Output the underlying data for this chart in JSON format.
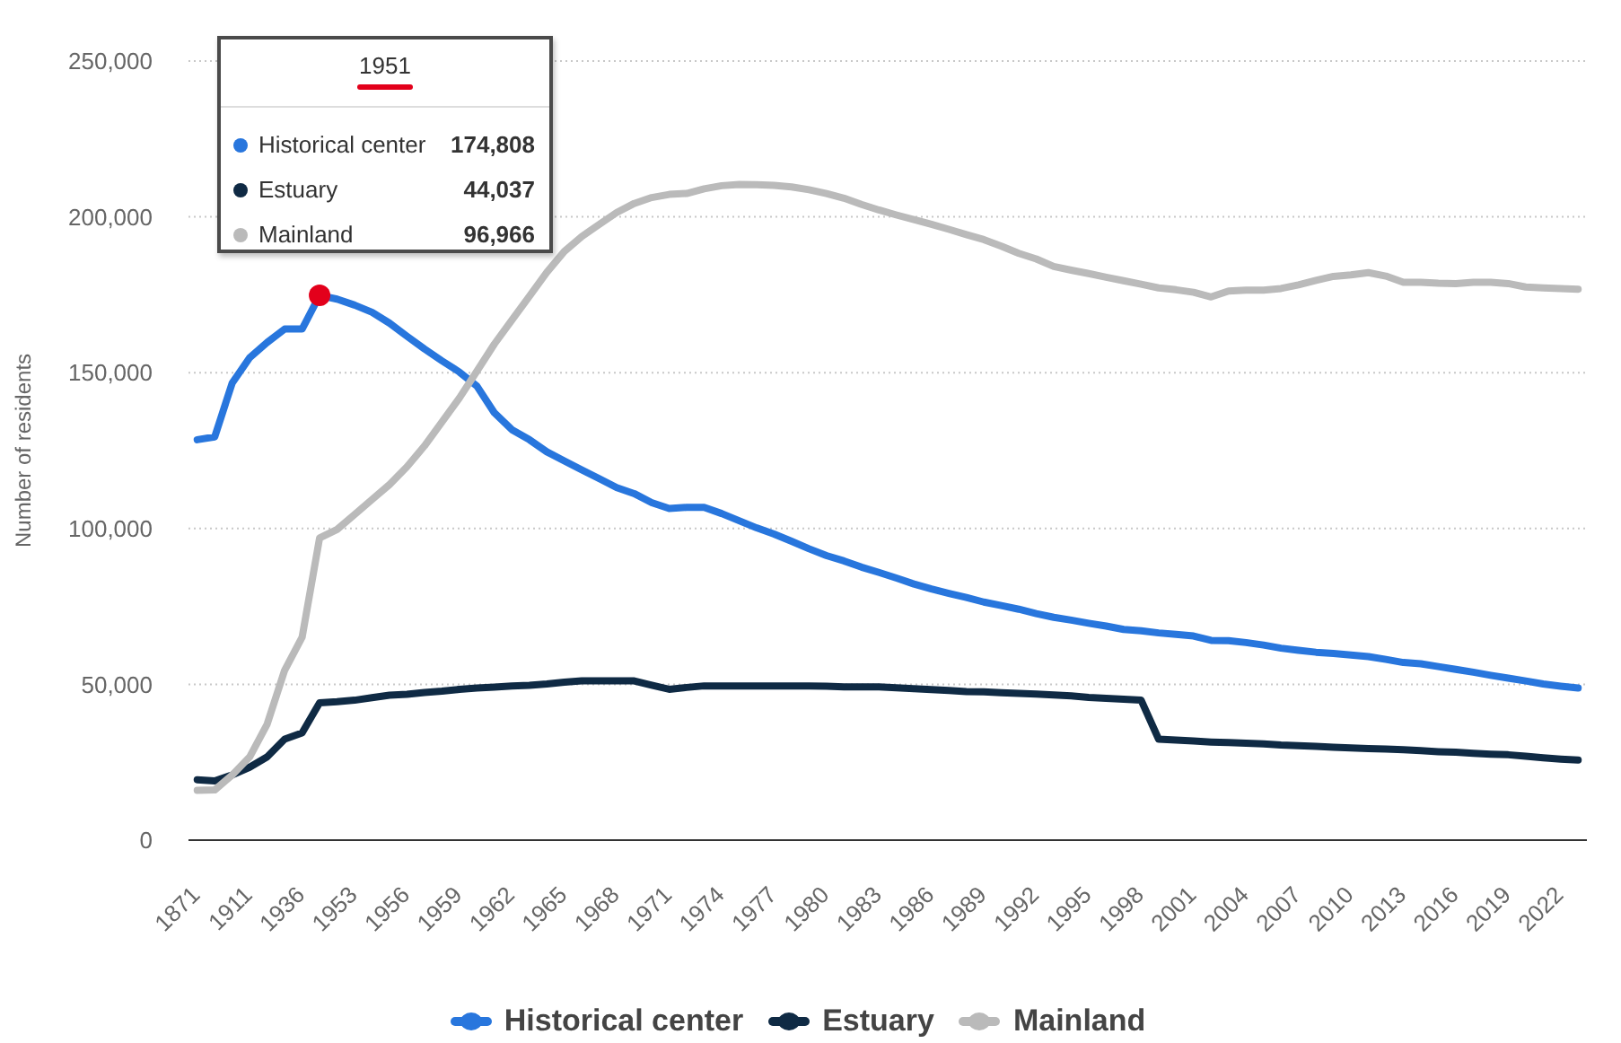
{
  "chart_data": {
    "type": "line",
    "ylabel": "Number of residents",
    "annotations": [
      "1951",
      "174,808",
      "44,037",
      "96,966"
    ],
    "categories": [
      "1871",
      null,
      null,
      "1911",
      null,
      null,
      "1936",
      null,
      null,
      "1953",
      null,
      null,
      "1956",
      null,
      null,
      "1959",
      null,
      null,
      "1962",
      null,
      null,
      "1965",
      null,
      null,
      "1968",
      null,
      null,
      "1971",
      null,
      null,
      "1974",
      null,
      null,
      "1977",
      null,
      null,
      "1980",
      null,
      null,
      "1983",
      null,
      null,
      "1986",
      null,
      null,
      "1989",
      null,
      null,
      "1992",
      null,
      null,
      "1995",
      null,
      null,
      "1998",
      null,
      null,
      "2001",
      null,
      null,
      "2004",
      null,
      null,
      "2007",
      null,
      null,
      "2010",
      null,
      null,
      "2013",
      null,
      null,
      "2016",
      null,
      null,
      "2019",
      null,
      null,
      "2022",
      null
    ],
    "series": [
      {
        "name": "Historical center",
        "color": "#2876dd",
        "values": [
          128500,
          129400,
          146700,
          154800,
          159700,
          164000,
          164000,
          174808,
          173600,
          171700,
          169400,
          165900,
          161700,
          157600,
          153800,
          150200,
          145700,
          137100,
          131700,
          128500,
          124600,
          121700,
          118800,
          116000,
          113100,
          111200,
          108300,
          106400,
          106800,
          106800,
          104800,
          102500,
          100200,
          98200,
          95900,
          93500,
          91300,
          89600,
          87600,
          85900,
          84100,
          82200,
          80600,
          79200,
          77900,
          76400,
          75300,
          74100,
          72700,
          71500,
          70600,
          69600,
          68700,
          67600,
          67200,
          66500,
          66000,
          65500,
          64100,
          64000,
          63400,
          62600,
          61600,
          60900,
          60300,
          59900,
          59400,
          58900,
          58000,
          57000,
          56600,
          55700,
          54800,
          53900,
          52900,
          52000,
          51100,
          50100,
          49400,
          48800
        ]
      },
      {
        "name": "Estuary",
        "color": "#0f2a44",
        "values": [
          19400,
          19000,
          20900,
          23400,
          26700,
          32400,
          34400,
          44037,
          44400,
          44900,
          45700,
          46500,
          46800,
          47400,
          47800,
          48400,
          48800,
          49100,
          49500,
          49700,
          50100,
          50700,
          51100,
          51100,
          51100,
          51100,
          49700,
          48400,
          49000,
          49500,
          49500,
          49500,
          49500,
          49500,
          49500,
          49500,
          49400,
          49200,
          49200,
          49200,
          48900,
          48600,
          48300,
          48000,
          47700,
          47600,
          47300,
          47100,
          46900,
          46600,
          46300,
          45800,
          45500,
          45200,
          44900,
          32400,
          32100,
          31800,
          31500,
          31300,
          31100,
          30900,
          30500,
          30300,
          30100,
          29800,
          29600,
          29400,
          29200,
          29000,
          28700,
          28400,
          28200,
          27900,
          27600,
          27400,
          26900,
          26400,
          26000,
          25700
        ]
      },
      {
        "name": "Mainland",
        "color": "#bababa",
        "values": [
          16000,
          16100,
          20900,
          26700,
          37200,
          54500,
          65100,
          96966,
          99700,
          104500,
          109300,
          114100,
          119800,
          126500,
          134200,
          141900,
          150500,
          159200,
          166900,
          174500,
          182200,
          188900,
          193700,
          197600,
          201400,
          204300,
          206200,
          207200,
          207500,
          209000,
          210000,
          210400,
          210300,
          210100,
          209600,
          208700,
          207500,
          206000,
          204000,
          202200,
          200600,
          199100,
          197600,
          196000,
          194300,
          192700,
          190600,
          188300,
          186500,
          184100,
          182900,
          181800,
          180600,
          179500,
          178400,
          177200,
          176600,
          175800,
          174300,
          176200,
          176500,
          176500,
          177000,
          178200,
          179600,
          180900,
          181400,
          182100,
          181000,
          179000,
          179000,
          178700,
          178600,
          179000,
          179000,
          178600,
          177500,
          177200,
          177000,
          176800
        ]
      }
    ],
    "ylim": [
      0,
      250000
    ],
    "yticks": [
      0,
      {
        "value": 50000,
        "label": "50,000"
      },
      {
        "value": 100000,
        "label": "100,000"
      },
      {
        "value": 150000,
        "label": "150,000"
      },
      {
        "value": 200000,
        "label": "200,000"
      },
      {
        "value": 250000,
        "label": "250,000"
      }
    ],
    "grid": "y",
    "legend": "bottom",
    "marker": "none"
  }
}
